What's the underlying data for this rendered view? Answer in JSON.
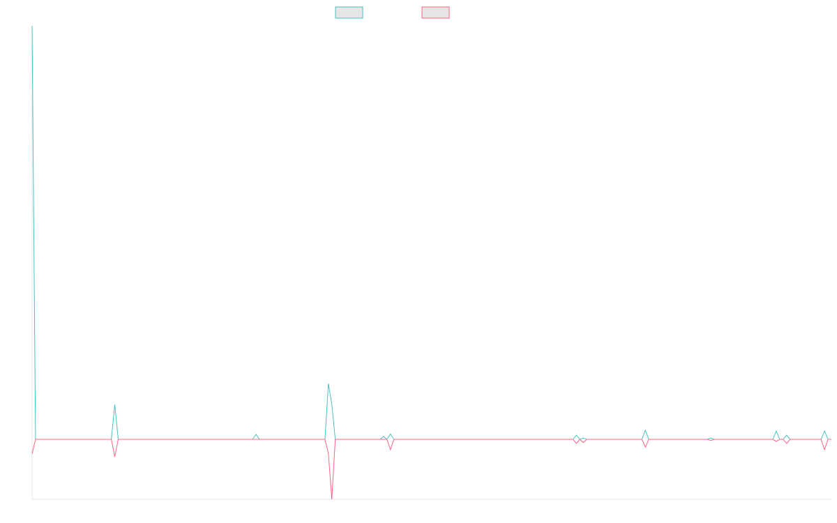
{
  "chart_data": {
    "type": "line",
    "ylim": [
      -14.5,
      100
    ],
    "series": [
      {
        "color": "#4bc0c0",
        "values": [
          100,
          0,
          0,
          0,
          0,
          0,
          0,
          0,
          0,
          0,
          0,
          0,
          0,
          0,
          0,
          0,
          0,
          0,
          0,
          0,
          0,
          0,
          0,
          0,
          8.4,
          0,
          0,
          0,
          0,
          0,
          0,
          0,
          0,
          0,
          0,
          0,
          0,
          0,
          0,
          0,
          0,
          0,
          0,
          0,
          0,
          0,
          0,
          0,
          0,
          0,
          0,
          0,
          0,
          0,
          0,
          0,
          0,
          0,
          0,
          0,
          0,
          0,
          0,
          0,
          0,
          1.2,
          0,
          0,
          0,
          0,
          0,
          0,
          0,
          0,
          0,
          0,
          0,
          0,
          0,
          0,
          0,
          0,
          0,
          0,
          0,
          0,
          13.5,
          8.4,
          0,
          0,
          0,
          0,
          0,
          0,
          0,
          0,
          0,
          0,
          0,
          0,
          0,
          0,
          0.7,
          0,
          1.3,
          0,
          0,
          0,
          0,
          0,
          0,
          0,
          0,
          0,
          0,
          0,
          0,
          0,
          0,
          0,
          0,
          0,
          0,
          0,
          0,
          0,
          0,
          0,
          0,
          0,
          0,
          0,
          0,
          0,
          0,
          0,
          0,
          0,
          0,
          0,
          0,
          0,
          0,
          0,
          0,
          0,
          0,
          0,
          0,
          0,
          0,
          0,
          0,
          0,
          0,
          0,
          0,
          0,
          1.0,
          0,
          0.3,
          0,
          0,
          0,
          0,
          0,
          0,
          0,
          0,
          0,
          0,
          0,
          0,
          0,
          0,
          0,
          0,
          0,
          2.2,
          0,
          0,
          0,
          0,
          0,
          0,
          0,
          0,
          0,
          0,
          0,
          0,
          0,
          0,
          0,
          0,
          0,
          0,
          0.3,
          0,
          0,
          0,
          0,
          0,
          0,
          0,
          0,
          0,
          0,
          0,
          0,
          0,
          0,
          0,
          0,
          0,
          0,
          2.0,
          0,
          0,
          1.0,
          0,
          0,
          0,
          0,
          0,
          0,
          0,
          0,
          0,
          0,
          2.0,
          0,
          0
        ]
      },
      {
        "color": "#ff6384",
        "values": [
          -3.5,
          0,
          0,
          0,
          0,
          0,
          0,
          0,
          0,
          0,
          0,
          0,
          0,
          0,
          0,
          0,
          0,
          0,
          0,
          0,
          0,
          0,
          0,
          0,
          -4.2,
          0,
          0,
          0,
          0,
          0,
          0,
          0,
          0,
          0,
          0,
          0,
          0,
          0,
          0,
          0,
          0,
          0,
          0,
          0,
          0,
          0,
          0,
          0,
          0,
          0,
          0,
          0,
          0,
          0,
          0,
          0,
          0,
          0,
          0,
          0,
          0,
          0,
          0,
          0,
          0,
          0,
          0,
          0,
          0,
          0,
          0,
          0,
          0,
          0,
          0,
          0,
          0,
          0,
          0,
          0,
          0,
          0,
          0,
          0,
          0,
          0,
          -3.4,
          -14.5,
          0,
          0,
          0,
          0,
          0,
          0,
          0,
          0,
          0,
          0,
          0,
          0,
          0,
          0,
          0,
          0,
          -2.5,
          0,
          0,
          0,
          0,
          0,
          0,
          0,
          0,
          0,
          0,
          0,
          0,
          0,
          0,
          0,
          0,
          0,
          0,
          0,
          0,
          0,
          0,
          0,
          0,
          0,
          0,
          0,
          0,
          0,
          0,
          0,
          0,
          0,
          0,
          0,
          0,
          0,
          0,
          0,
          0,
          0,
          0,
          0,
          0,
          0,
          0,
          0,
          0,
          0,
          0,
          0,
          0,
          0,
          -1.0,
          0,
          -0.8,
          0,
          0,
          0,
          0,
          0,
          0,
          0,
          0,
          0,
          0,
          0,
          0,
          0,
          0,
          0,
          0,
          0,
          -1.9,
          0,
          0,
          0,
          0,
          0,
          0,
          0,
          0,
          0,
          0,
          0,
          0,
          0,
          0,
          0,
          0,
          0,
          0,
          -0.3,
          0,
          0,
          0,
          0,
          0,
          0,
          0,
          0,
          0,
          0,
          0,
          0,
          0,
          0,
          0,
          0,
          0,
          0,
          -0.5,
          0,
          0,
          -1.0,
          0,
          0,
          0,
          0,
          0,
          0,
          0,
          0,
          0,
          0,
          -2.5,
          0,
          0
        ]
      }
    ]
  }
}
